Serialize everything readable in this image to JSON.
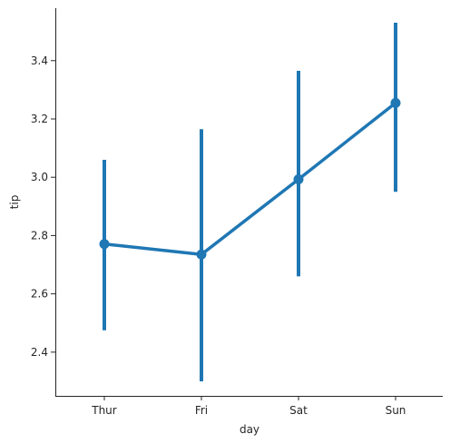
{
  "chart_data": {
    "type": "line",
    "subtype": "pointplot",
    "title": "",
    "xlabel": "day",
    "ylabel": "tip",
    "categories": [
      "Thur",
      "Fri",
      "Sat",
      "Sun"
    ],
    "series": [
      {
        "values": [
          2.771,
          2.735,
          2.993,
          3.255
        ],
        "ci_low": [
          2.475,
          2.3,
          2.66,
          2.95
        ],
        "ci_high": [
          3.06,
          3.165,
          3.365,
          3.53
        ]
      }
    ],
    "ylim": [
      2.25,
      3.58
    ],
    "yticks": [
      "2.4",
      "2.6",
      "2.8",
      "3.0",
      "3.2",
      "3.4"
    ],
    "grid": false,
    "legend": "none",
    "colors": {
      "series": "#1f77b4",
      "axis": "#262626"
    }
  }
}
